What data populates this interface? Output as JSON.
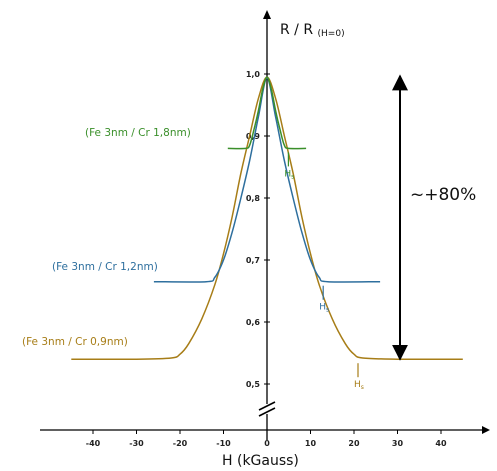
{
  "chart_data": {
    "type": "line",
    "title": "",
    "xlabel": "H (kGauss)",
    "ylabel": "R / R(H=0)",
    "ylabel_main": "R / R",
    "ylabel_sub": "(H=0)",
    "xlim": [
      -50,
      50
    ],
    "ylim": [
      0.45,
      1.05
    ],
    "x_ticks": [
      -40,
      -30,
      -20,
      -10,
      0,
      10,
      20,
      30,
      40
    ],
    "y_ticks": [
      0.5,
      0.6,
      0.7,
      0.8,
      0.9,
      1.0
    ],
    "y_tick_labels": [
      "0,5",
      "0,6",
      "0,7",
      "0,8",
      "0,9",
      "1,0"
    ],
    "y_axis_break": true,
    "grid": false,
    "legend": "inline labels",
    "series": [
      {
        "name": "(Fe 3nm / Cr 0,9nm)",
        "color": "#a77d17",
        "x": [
          -45,
          -30,
          -22,
          -20,
          -18,
          -15,
          -12,
          -10,
          -8,
          -6,
          -4,
          -2,
          0,
          2,
          4,
          6,
          8,
          10,
          12,
          15,
          18,
          20,
          22,
          30,
          45
        ],
        "y": [
          0.54,
          0.54,
          0.542,
          0.548,
          0.565,
          0.605,
          0.66,
          0.71,
          0.77,
          0.84,
          0.9,
          0.96,
          0.995,
          0.96,
          0.9,
          0.84,
          0.77,
          0.71,
          0.66,
          0.605,
          0.565,
          0.548,
          0.542,
          0.54,
          0.54
        ],
        "hs_label": "Hs",
        "hs_x": 20
      },
      {
        "name": "(Fe 3nm / Cr 1,2nm)",
        "color": "#2e6f9e",
        "x": [
          -26,
          -14,
          -12,
          -10,
          -8,
          -6,
          -4,
          -2,
          0,
          2,
          4,
          6,
          8,
          10,
          12,
          14,
          26
        ],
        "y": [
          0.665,
          0.665,
          0.672,
          0.7,
          0.745,
          0.8,
          0.86,
          0.93,
          0.993,
          0.93,
          0.86,
          0.8,
          0.745,
          0.7,
          0.672,
          0.665,
          0.665
        ],
        "hs_label": "Hs",
        "hs_x": 12
      },
      {
        "name": "(Fe 3nm / Cr 1,8nm)",
        "color": "#3a8f2a",
        "x": [
          -9,
          -5,
          -4,
          -3,
          -2,
          -1,
          0,
          1,
          2,
          3,
          4,
          5,
          9
        ],
        "y": [
          0.88,
          0.88,
          0.885,
          0.91,
          0.94,
          0.975,
          0.995,
          0.975,
          0.94,
          0.91,
          0.885,
          0.88,
          0.88
        ],
        "hs_label": "Hs",
        "hs_x": 4
      }
    ],
    "annotation": {
      "text": "~+80%",
      "from_y": 0.54,
      "to_y": 1.0
    }
  }
}
